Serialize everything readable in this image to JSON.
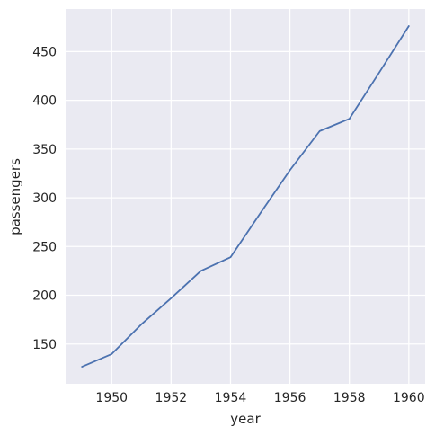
{
  "colors": {
    "background": "#ffffff",
    "plot_background": "#eaeaf2",
    "grid": "#ffffff",
    "line": "#4c72b0",
    "text": "#262626"
  },
  "chart_data": {
    "type": "line",
    "title": "",
    "xlabel": "year",
    "ylabel": "passengers",
    "x": [
      1949,
      1950,
      1951,
      1952,
      1953,
      1954,
      1955,
      1956,
      1957,
      1958,
      1959,
      1960
    ],
    "series": [
      {
        "values": [
          126.7,
          139.7,
          170.2,
          197.0,
          225.0,
          239.0,
          284.0,
          328.3,
          368.4,
          381.0,
          428.3,
          476.2
        ]
      }
    ],
    "xlim": [
      1948.45,
      1960.55
    ],
    "ylim": [
      109.2,
      493.7
    ],
    "x_ticks": [
      1950,
      1952,
      1954,
      1956,
      1958,
      1960
    ],
    "x_tick_labels": [
      "1950",
      "1952",
      "1954",
      "1956",
      "1958",
      "1960"
    ],
    "y_ticks": [
      150,
      200,
      250,
      300,
      350,
      400,
      450
    ],
    "y_tick_labels": [
      "150",
      "200",
      "250",
      "300",
      "350",
      "400",
      "450"
    ],
    "grid": true,
    "legend": "none"
  }
}
